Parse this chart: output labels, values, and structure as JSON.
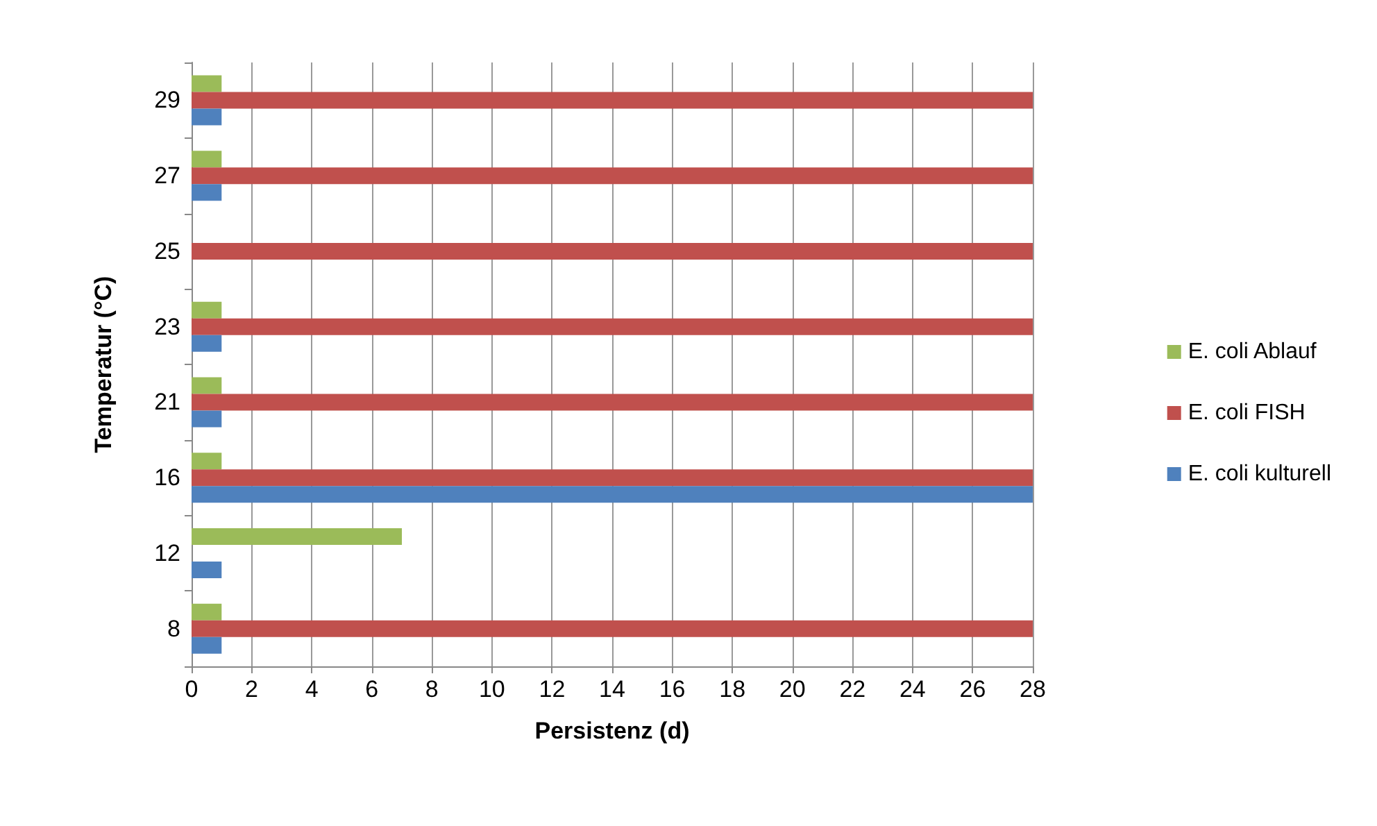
{
  "chart_data": {
    "type": "bar",
    "orientation": "horizontal",
    "xlabel": "Persistenz (d)",
    "ylabel": "Temperatur (°C)",
    "categories": [
      "29",
      "27",
      "25",
      "23",
      "21",
      "16",
      "12",
      "8"
    ],
    "series": [
      {
        "name": "E. coli Ablauf",
        "color": "#9bbb59",
        "values": [
          1,
          1,
          null,
          1,
          1,
          1,
          7,
          1
        ]
      },
      {
        "name": "E. coli FISH",
        "color": "#c0504d",
        "values": [
          28,
          28,
          28,
          28,
          28,
          28,
          null,
          28
        ]
      },
      {
        "name": "E. coli kulturell",
        "color": "#4f81bd",
        "values": [
          1,
          1,
          null,
          1,
          1,
          28,
          1,
          1
        ]
      }
    ],
    "xlim": [
      0,
      28
    ],
    "xticks": [
      0,
      2,
      4,
      6,
      8,
      10,
      12,
      14,
      16,
      18,
      20,
      22,
      24,
      26,
      28
    ],
    "grid": "x",
    "legend": "right"
  }
}
